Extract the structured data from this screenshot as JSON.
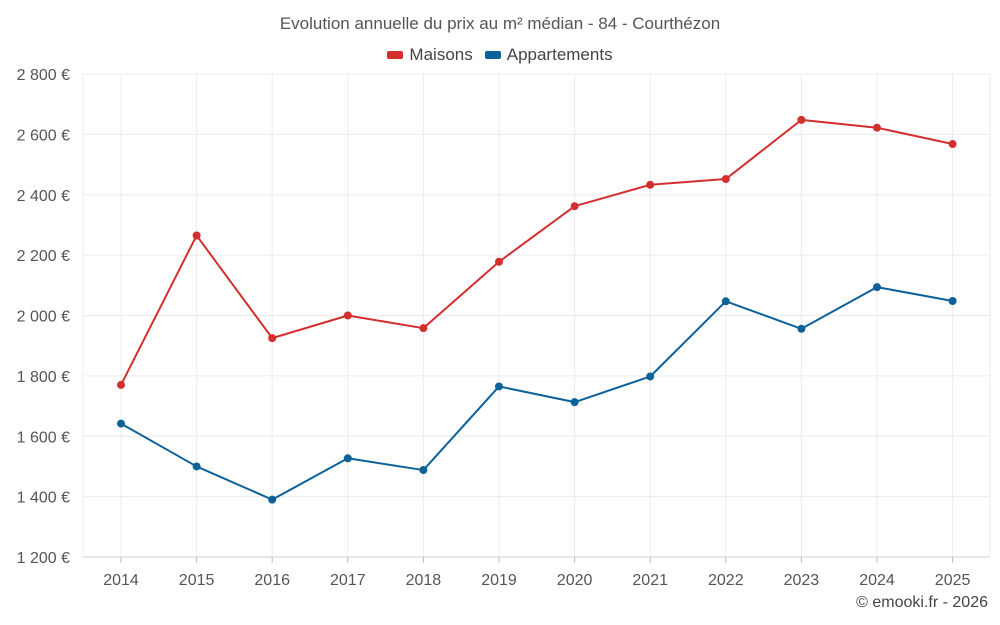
{
  "chart_data": {
    "type": "line",
    "title": "Evolution annuelle du prix au m² médian - 84 - Courthézon",
    "categories": [
      "2014",
      "2015",
      "2016",
      "2017",
      "2018",
      "2019",
      "2020",
      "2021",
      "2022",
      "2023",
      "2024",
      "2025"
    ],
    "series": [
      {
        "name": "Maisons",
        "color": "#d32f2f",
        "values": [
          1770,
          2265,
          1925,
          2000,
          1958,
          2178,
          2362,
          2433,
          2452,
          2648,
          2622,
          2568
        ]
      },
      {
        "name": "Appartements",
        "color": "#0d6199",
        "values": [
          1642,
          1500,
          1390,
          1527,
          1488,
          1765,
          1713,
          1798,
          2047,
          1956,
          2094,
          2048
        ]
      }
    ],
    "ylim": [
      1200,
      2800
    ],
    "yticks": [
      1200,
      1400,
      1600,
      1800,
      2000,
      2200,
      2400,
      2600,
      2800
    ],
    "ytick_labels": [
      "1 200 €",
      "1 400 €",
      "1 600 €",
      "1 800 €",
      "2 000 €",
      "2 200 €",
      "2 400 €",
      "2 600 €",
      "2 800 €"
    ],
    "xlabel": "",
    "ylabel": "",
    "grid": true,
    "legend_position": "top-center"
  },
  "credit": "© emooki.fr - 2026"
}
